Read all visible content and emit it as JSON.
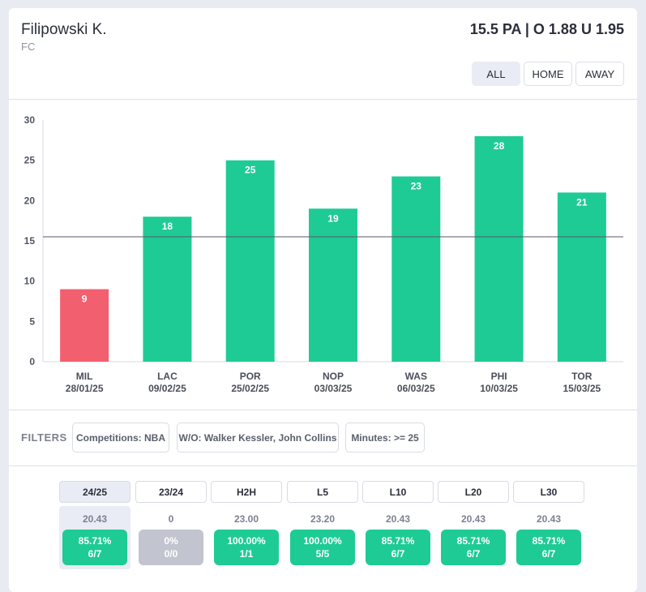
{
  "player": {
    "name": "Filipowski K.",
    "position": "FC"
  },
  "market": {
    "line_odds": "15.5 PA | O 1.88 U 1.95"
  },
  "venue_filter": {
    "options": [
      "ALL",
      "HOME",
      "AWAY"
    ],
    "selected": "ALL"
  },
  "colors": {
    "over": "#1ecb95",
    "under": "#f2606f",
    "neutral": "#c2c4cf",
    "threshold_line": "#555a66"
  },
  "chart_data": {
    "type": "bar",
    "title": "",
    "xlabel": "",
    "ylabel": "",
    "ylim": [
      0,
      30
    ],
    "yticks": [
      0,
      5,
      10,
      15,
      20,
      25,
      30
    ],
    "threshold": 15.5,
    "grid": false,
    "categories": [
      {
        "team": "MIL",
        "date": "28/01/25"
      },
      {
        "team": "LAC",
        "date": "09/02/25"
      },
      {
        "team": "POR",
        "date": "25/02/25"
      },
      {
        "team": "NOP",
        "date": "03/03/25"
      },
      {
        "team": "WAS",
        "date": "06/03/25"
      },
      {
        "team": "PHI",
        "date": "10/03/25"
      },
      {
        "team": "TOR",
        "date": "15/03/25"
      }
    ],
    "values": [
      9,
      18,
      25,
      19,
      23,
      28,
      21
    ],
    "bar_status": [
      "under",
      "over",
      "over",
      "over",
      "over",
      "over",
      "over"
    ]
  },
  "filters": {
    "label": "FILTERS",
    "chips": [
      "Competitions: NBA",
      "W/O: Walker Kessler, John Collins",
      "Minutes: >= 25"
    ]
  },
  "seasons": [
    {
      "label": "24/25",
      "avg": "20.43",
      "pct": "85.71%",
      "ratio": "6/7",
      "status": "over",
      "active": true
    },
    {
      "label": "23/24",
      "avg": "0",
      "pct": "0%",
      "ratio": "0/0",
      "status": "neutral",
      "active": false
    },
    {
      "label": "H2H",
      "avg": "23.00",
      "pct": "100.00%",
      "ratio": "1/1",
      "status": "over",
      "active": false
    },
    {
      "label": "L5",
      "avg": "23.20",
      "pct": "100.00%",
      "ratio": "5/5",
      "status": "over",
      "active": false
    },
    {
      "label": "L10",
      "avg": "20.43",
      "pct": "85.71%",
      "ratio": "6/7",
      "status": "over",
      "active": false
    },
    {
      "label": "L20",
      "avg": "20.43",
      "pct": "85.71%",
      "ratio": "6/7",
      "status": "over",
      "active": false
    },
    {
      "label": "L30",
      "avg": "20.43",
      "pct": "85.71%",
      "ratio": "6/7",
      "status": "over",
      "active": false
    }
  ]
}
